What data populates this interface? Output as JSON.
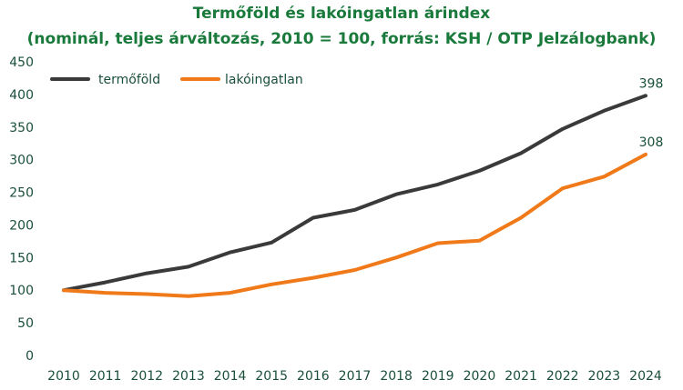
{
  "chart_data": {
    "type": "line",
    "title": "Termőföld és lakóingatlan árindex",
    "subtitle": "(nominál, teljes árváltozás, 2010 = 100, forrás: KSH / OTP Jelzálogbank)",
    "xlabel": "",
    "ylabel": "",
    "categories": [
      "2010",
      "2011",
      "2012",
      "2013",
      "2014",
      "2015",
      "2016",
      "2017",
      "2018",
      "2019",
      "2020",
      "2021",
      "2022",
      "2023",
      "2024"
    ],
    "ylim": [
      0,
      450
    ],
    "yticks": [
      0,
      50,
      100,
      150,
      200,
      250,
      300,
      350,
      400,
      450
    ],
    "grid": false,
    "legend_position": "top-left",
    "series": [
      {
        "name": "termőföld",
        "color": "#3a3a3a",
        "values": [
          100,
          112,
          126,
          136,
          158,
          173,
          211,
          223,
          247,
          262,
          283,
          310,
          347,
          375,
          398
        ],
        "end_label": "398"
      },
      {
        "name": "lakóingatlan",
        "color": "#f07a1a",
        "values": [
          100,
          96,
          94,
          91,
          96,
          109,
          119,
          131,
          150,
          172,
          176,
          211,
          256,
          274,
          308
        ],
        "end_label": "308"
      }
    ]
  }
}
